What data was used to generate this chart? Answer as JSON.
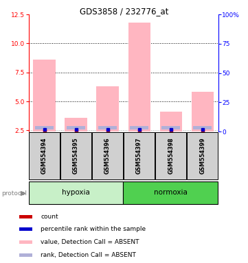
{
  "title": "GDS3858 / 232776_at",
  "samples": [
    "GSM554394",
    "GSM554395",
    "GSM554396",
    "GSM554397",
    "GSM554398",
    "GSM554399"
  ],
  "values": [
    8.6,
    3.6,
    6.3,
    11.8,
    4.1,
    5.8
  ],
  "rank_top": [
    2.85,
    2.85,
    2.85,
    2.85,
    2.85,
    2.85
  ],
  "rank_bot": [
    2.55,
    2.55,
    2.55,
    2.55,
    2.55,
    2.55
  ],
  "count_y": [
    2.48,
    2.48,
    2.48,
    2.48,
    2.48,
    2.48
  ],
  "ylim": [
    2.4,
    12.5
  ],
  "yticks": [
    2.5,
    5.0,
    7.5,
    10.0,
    12.5
  ],
  "y2ticks": [
    0,
    25,
    50,
    75,
    100
  ],
  "bar_color_value": "#ffb6c1",
  "bar_color_rank": "#b0b0d8",
  "count_color": "#cc0000",
  "percentile_color": "#0000cc",
  "bar_bottom": 2.4,
  "bar_width": 0.7,
  "hypoxia_color": "#c8f0c8",
  "normoxia_color": "#50d050",
  "sample_box_color": "#d0d0d0",
  "legend_items": [
    {
      "label": "count",
      "color": "#cc0000"
    },
    {
      "label": "percentile rank within the sample",
      "color": "#0000cc"
    },
    {
      "label": "value, Detection Call = ABSENT",
      "color": "#ffb6c1"
    },
    {
      "label": "rank, Detection Call = ABSENT",
      "color": "#b0b0d8"
    }
  ]
}
